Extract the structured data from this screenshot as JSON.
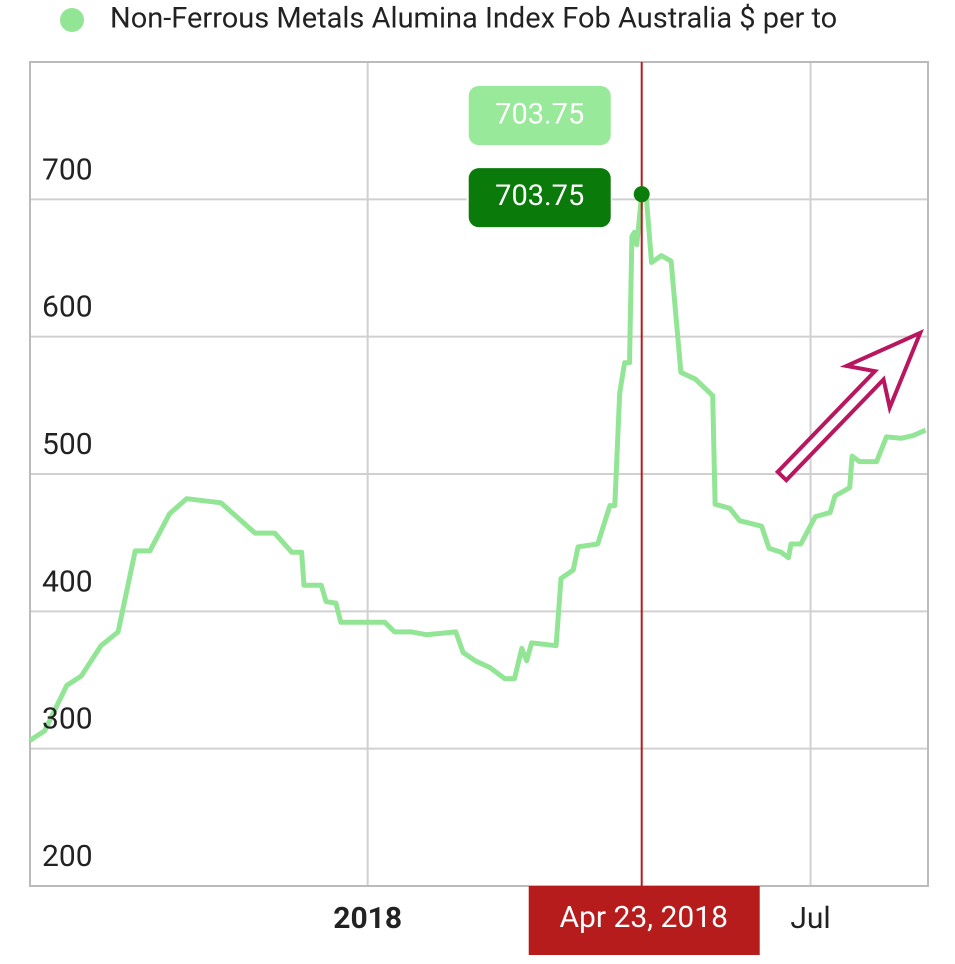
{
  "chart_data": {
    "type": "line",
    "legend": "top",
    "grid": true,
    "series": [
      {
        "name": "Non-Ferrous Metals Alumina Index Fob Australia $ per to",
        "color": "#93e596",
        "x": [
          "2017-08-16",
          "2017-08-22",
          "2017-08-31",
          "2017-09-06",
          "2017-09-14",
          "2017-09-21",
          "2017-09-28",
          "2017-10-04",
          "2017-10-12",
          "2017-10-19",
          "2017-11-02",
          "2017-11-16",
          "2017-11-24",
          "2017-12-01",
          "2017-12-05",
          "2017-12-06",
          "2017-12-13",
          "2017-12-15",
          "2017-12-19",
          "2017-12-21",
          "2017-12-31",
          "2018-01-08",
          "2018-01-12",
          "2018-01-19",
          "2018-01-25",
          "2018-02-06",
          "2018-02-09",
          "2018-02-14",
          "2018-02-20",
          "2018-02-26",
          "2018-03-02",
          "2018-03-05",
          "2018-03-07",
          "2018-03-09",
          "2018-03-19",
          "2018-03-21",
          "2018-03-26",
          "2018-03-28",
          "2018-04-05",
          "2018-04-10",
          "2018-04-12",
          "2018-04-14",
          "2018-04-16",
          "2018-04-18",
          "2018-04-19",
          "2018-04-20",
          "2018-04-21",
          "2018-04-23",
          "2018-04-25",
          "2018-04-27",
          "2018-05-01",
          "2018-05-05",
          "2018-05-09",
          "2018-05-15",
          "2018-05-22",
          "2018-05-23",
          "2018-05-29",
          "2018-06-02",
          "2018-06-11",
          "2018-06-14",
          "2018-06-19",
          "2018-06-22",
          "2018-06-23",
          "2018-06-27",
          "2018-07-03",
          "2018-07-09",
          "2018-07-11",
          "2018-07-17",
          "2018-07-18",
          "2018-07-21",
          "2018-07-28",
          "2018-08-01",
          "2018-08-07",
          "2018-08-12",
          "2018-08-17"
        ],
        "values": [
          306,
          313,
          346,
          353,
          375,
          385,
          444,
          444,
          471,
          482,
          479,
          457,
          457,
          443,
          443,
          419,
          419,
          407,
          406,
          392,
          392,
          392,
          385,
          385,
          383,
          385,
          370,
          364,
          359,
          351,
          351,
          373,
          364,
          377,
          375,
          424,
          430,
          447,
          449,
          477,
          477,
          559,
          581,
          581,
          673,
          676,
          667,
          703.75,
          699,
          654,
          659,
          655,
          574,
          569,
          557,
          478,
          475,
          466,
          462,
          446,
          443,
          439,
          449,
          449,
          469,
          472,
          484,
          490,
          513,
          509,
          509,
          527,
          526,
          528,
          532
        ]
      }
    ],
    "xlim": [
      "2017-08-16",
      "2018-08-18"
    ],
    "xticks": [
      {
        "value": "2018-01-01",
        "label": "2018"
      },
      {
        "value": "2018-07-01",
        "label": "Jul"
      }
    ],
    "ylim": [
      200,
      800
    ],
    "yticks": [
      200,
      300,
      400,
      500,
      600,
      700
    ],
    "crosshair": {
      "x": "2018-04-23",
      "label": "Apr 23, 2018",
      "value": 703.75,
      "color": "#b71c1c"
    }
  }
}
